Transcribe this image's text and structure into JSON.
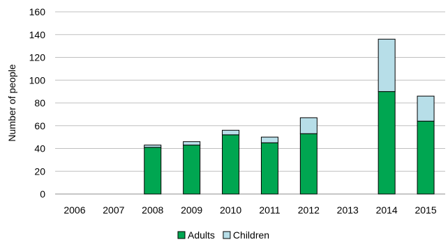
{
  "chart_data": {
    "type": "bar",
    "stacked": true,
    "title": "",
    "xlabel": "",
    "ylabel": "Number of people",
    "ylim": [
      0,
      160
    ],
    "yticks": [
      0,
      20,
      40,
      60,
      80,
      100,
      120,
      140,
      160
    ],
    "grid": true,
    "legend_position": "bottom",
    "categories": [
      "2006",
      "2007",
      "2008",
      "2009",
      "2010",
      "2011",
      "2012",
      "2013",
      "2014",
      "2015"
    ],
    "series": [
      {
        "name": "Adults",
        "color": "#00A651",
        "values": [
          0,
          0,
          41,
          43,
          52,
          45,
          53,
          0,
          90,
          64
        ]
      },
      {
        "name": "Children",
        "color": "#B7DEE8",
        "values": [
          0,
          0,
          2,
          3,
          4,
          5,
          14,
          0,
          46,
          22
        ]
      }
    ]
  }
}
